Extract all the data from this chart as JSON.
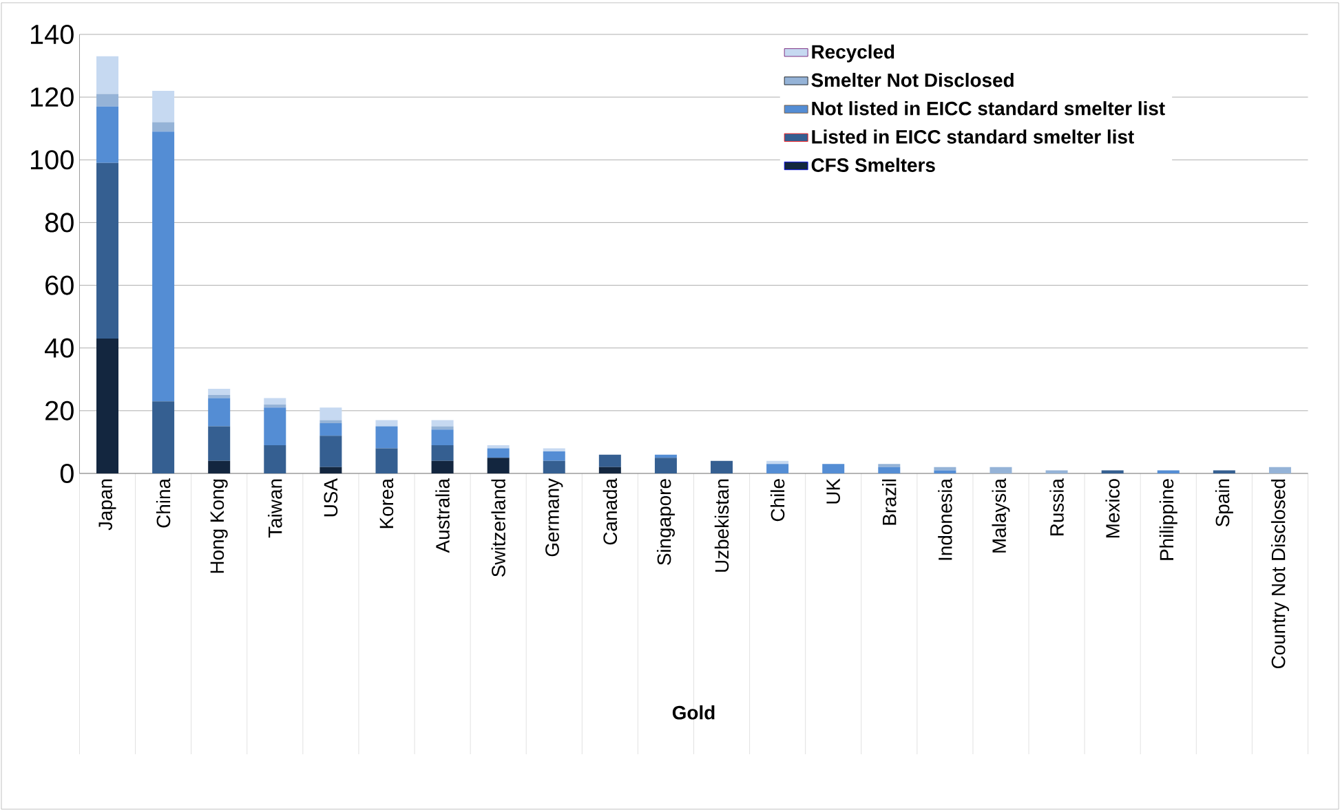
{
  "chart_data": {
    "type": "bar",
    "stacked": true,
    "xlabel": "Gold",
    "categories": [
      "Japan",
      "China",
      "Hong Kong",
      "Taiwan",
      "USA",
      "Korea",
      "Australia",
      "Switzerland",
      "Germany",
      "Canada",
      "Singapore",
      "Uzbekistan",
      "Chile",
      "UK",
      "Brazil",
      "Indonesia",
      "Malaysia",
      "Russia",
      "Mexico",
      "Philippine",
      "Spain",
      "Country Not Disclosed"
    ],
    "series": [
      {
        "name": "CFS Smelters",
        "color": "#13263f",
        "values": [
          43,
          0,
          4,
          0,
          2,
          0,
          4,
          5,
          0,
          2,
          0,
          0,
          0,
          0,
          0,
          0,
          0,
          0,
          0,
          0,
          0,
          0
        ]
      },
      {
        "name": "Listed in EICC standard smelter list",
        "color": "#355f91",
        "values": [
          56,
          23,
          11,
          9,
          10,
          8,
          5,
          0,
          4,
          4,
          5,
          4,
          0,
          0,
          0,
          0,
          0,
          0,
          1,
          0,
          1,
          0
        ]
      },
      {
        "name": "Not listed in EICC standard smelter list",
        "color": "#548dd4",
        "values": [
          18,
          86,
          9,
          12,
          4,
          7,
          5,
          3,
          3,
          0,
          1,
          0,
          3,
          3,
          2,
          1,
          0,
          0,
          0,
          1,
          0,
          0
        ]
      },
      {
        "name": "Smelter Not Disclosed",
        "color": "#95b3d7",
        "values": [
          4,
          3,
          1,
          1,
          1,
          0,
          1,
          0,
          0,
          0,
          0,
          0,
          0,
          0,
          1,
          1,
          2,
          1,
          0,
          0,
          0,
          2
        ]
      },
      {
        "name": "Recycled",
        "color": "#c6d9f1",
        "values": [
          12,
          10,
          2,
          2,
          4,
          2,
          2,
          1,
          1,
          0,
          0,
          0,
          1,
          0,
          0,
          0,
          0,
          0,
          0,
          0,
          0,
          0
        ]
      }
    ],
    "ylim": [
      0,
      140
    ],
    "yticks": [
      0,
      20,
      40,
      60,
      80,
      100,
      120,
      140
    ],
    "grid": "y",
    "legend": "top right"
  }
}
